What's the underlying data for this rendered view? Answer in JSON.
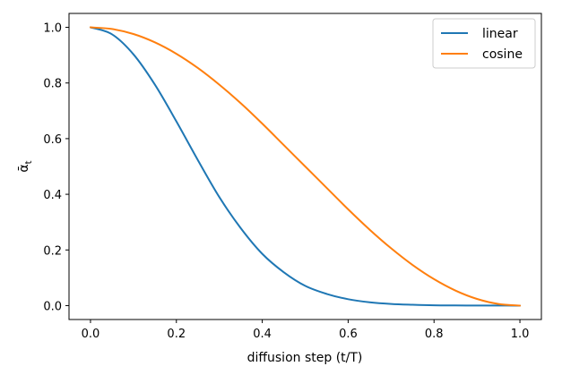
{
  "chart_data": {
    "type": "line",
    "title": "",
    "xlabel": "diffusion step (t/T)",
    "ylabel": "ᾱ",
    "ylabel_subscript": "t",
    "xlim": [
      -0.05,
      1.05
    ],
    "ylim": [
      -0.05,
      1.05
    ],
    "x_ticks": [
      0.0,
      0.2,
      0.4,
      0.6,
      0.8,
      1.0
    ],
    "x_tick_labels": [
      "0.0",
      "0.2",
      "0.4",
      "0.6",
      "0.8",
      "1.0"
    ],
    "y_ticks": [
      0.0,
      0.2,
      0.4,
      0.6,
      0.8,
      1.0
    ],
    "y_tick_labels": [
      "0.0",
      "0.2",
      "0.4",
      "0.6",
      "0.8",
      "1.0"
    ],
    "grid": false,
    "legend_position": "top-right",
    "x": [
      0.0,
      0.05,
      0.1,
      0.15,
      0.2,
      0.25,
      0.3,
      0.35,
      0.4,
      0.45,
      0.5,
      0.55,
      0.6,
      0.65,
      0.7,
      0.75,
      0.8,
      0.85,
      0.9,
      0.95,
      1.0
    ],
    "series": [
      {
        "name": "linear",
        "color": "#1f77b4",
        "values": [
          1.0,
          0.975,
          0.903,
          0.794,
          0.662,
          0.523,
          0.39,
          0.278,
          0.186,
          0.12,
          0.071,
          0.042,
          0.023,
          0.012,
          0.006,
          0.003,
          0.001,
          0.0005,
          0.0002,
          0.0001,
          0.0
        ]
      },
      {
        "name": "cosine",
        "color": "#ff7f0e",
        "values": [
          1.0,
          0.994,
          0.976,
          0.946,
          0.905,
          0.854,
          0.794,
          0.727,
          0.654,
          0.577,
          0.5,
          0.423,
          0.346,
          0.273,
          0.206,
          0.146,
          0.095,
          0.054,
          0.024,
          0.006,
          0.0
        ]
      }
    ]
  }
}
